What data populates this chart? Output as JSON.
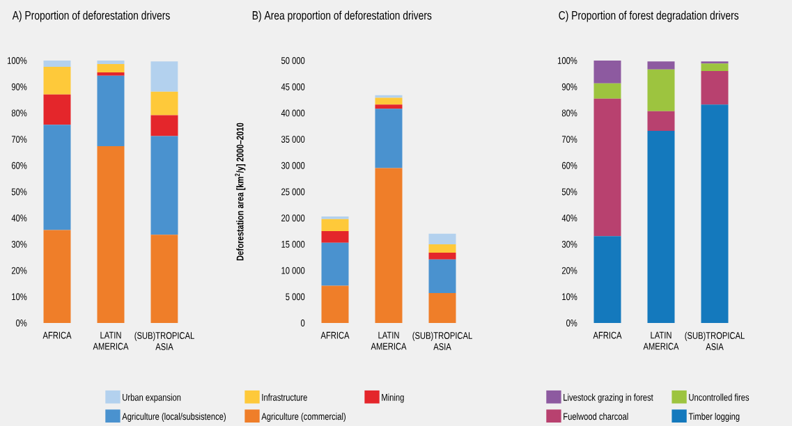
{
  "chart_data": [
    {
      "type": "bar",
      "stacked": true,
      "title": "A) Proportion of deforestation drivers",
      "categories": [
        "AFRICA",
        "LATIN AMERICA",
        "(SUB)TROPICAL ASIA"
      ],
      "series": [
        {
          "name": "Agriculture (commercial)",
          "color": "#ef7e29",
          "values": [
            35.4,
            67.4,
            33.6
          ]
        },
        {
          "name": "Agriculture (local/subsistence)",
          "color": "#4a92cf",
          "values": [
            40.1,
            26.8,
            37.6
          ]
        },
        {
          "name": "Mining",
          "color": "#e4262b",
          "values": [
            11.6,
            1.3,
            8.0
          ]
        },
        {
          "name": "Infrastructure",
          "color": "#fec93a",
          "values": [
            10.5,
            3.2,
            8.9
          ]
        },
        {
          "name": "Urban expansion",
          "color": "#b3d1ee",
          "values": [
            2.4,
            1.3,
            11.6
          ]
        }
      ],
      "ylim": [
        0,
        100
      ],
      "yticks": [
        {
          "value": 0,
          "label": "0%"
        },
        {
          "value": 10,
          "label": "10%"
        },
        {
          "value": 20,
          "label": "20%"
        },
        {
          "value": 30,
          "label": "30%"
        },
        {
          "value": 40,
          "label": "40%"
        },
        {
          "value": 50,
          "label": "50%"
        },
        {
          "value": 60,
          "label": "60%"
        },
        {
          "value": 70,
          "label": "70%"
        },
        {
          "value": 80,
          "label": "80%"
        },
        {
          "value": 90,
          "label": "90%"
        },
        {
          "value": 100,
          "label": "100%"
        }
      ],
      "legend": "bottom"
    },
    {
      "type": "bar",
      "stacked": true,
      "title": "B) Area proportion of deforestation drivers",
      "ylabel": "Deforestation area [km$^{2}$/y] 2000–2010",
      "categories": [
        "AFRICA",
        "LATIN AMERICA",
        "(SUB)TROPICAL ASIA"
      ],
      "series": [
        {
          "color": "#ef7e29",
          "values": [
            7100,
            29500,
            5700
          ]
        },
        {
          "color": "#4a92cf",
          "values": [
            8200,
            11300,
            6400
          ]
        },
        {
          "color": "#e4262b",
          "values": [
            2200,
            800,
            1300
          ]
        },
        {
          "color": "#fec93a",
          "values": [
            2300,
            1300,
            1600
          ]
        },
        {
          "color": "#b3d1ee",
          "values": [
            500,
            500,
            2000
          ]
        }
      ],
      "ylim": [
        0,
        50000
      ],
      "yticks": [
        0,
        {
          "value": 5000,
          "label": "5 000"
        },
        {
          "value": 10000,
          "label": "10 000"
        },
        {
          "value": 15000,
          "label": "15 000"
        },
        {
          "value": 20000,
          "label": "20 000"
        },
        {
          "value": 25000,
          "label": "25 000"
        },
        {
          "value": 30000,
          "label": "30 000"
        },
        {
          "value": 35000,
          "label": "35 000"
        },
        {
          "value": 40000,
          "label": "40 000"
        },
        {
          "value": 45000,
          "label": "45 000"
        },
        {
          "value": 50000,
          "label": "50 000"
        }
      ]
    },
    {
      "type": "bar",
      "stacked": true,
      "title": "C) Proportion of forest degradation drivers",
      "categories": [
        "AFRICA",
        "LATIN AMERICA",
        "(SUB)TROPICAL ASIA"
      ],
      "series": [
        {
          "name": "Timber logging",
          "color": "#1479bd",
          "values": [
            33.1,
            73.2,
            83.2
          ]
        },
        {
          "name": "Fuelwood charcoal",
          "color": "#b8416f",
          "values": [
            52.4,
            7.5,
            12.8
          ]
        },
        {
          "name": "Uncontrolled fires",
          "color": "#9dc43f",
          "values": [
            5.8,
            15.9,
            2.9
          ]
        },
        {
          "name": "Livestock grazing in forest",
          "color": "#8d5aa0",
          "values": [
            8.7,
            3.1,
            0.8
          ]
        }
      ],
      "ylim": [
        0,
        100
      ],
      "yticks": [
        {
          "value": 0,
          "label": "0%"
        },
        {
          "value": 10,
          "label": "10%"
        },
        {
          "value": 20,
          "label": "20%"
        },
        {
          "value": 30,
          "label": "30%"
        },
        {
          "value": 40,
          "label": "40%"
        },
        {
          "value": 50,
          "label": "50%"
        },
        {
          "value": 60,
          "label": "60%"
        },
        {
          "value": 70,
          "label": "70%"
        },
        {
          "value": 80,
          "label": "80%"
        },
        {
          "value": 90,
          "label": "90%"
        },
        {
          "value": 100,
          "label": "100%"
        }
      ],
      "legend": "bottom"
    }
  ]
}
